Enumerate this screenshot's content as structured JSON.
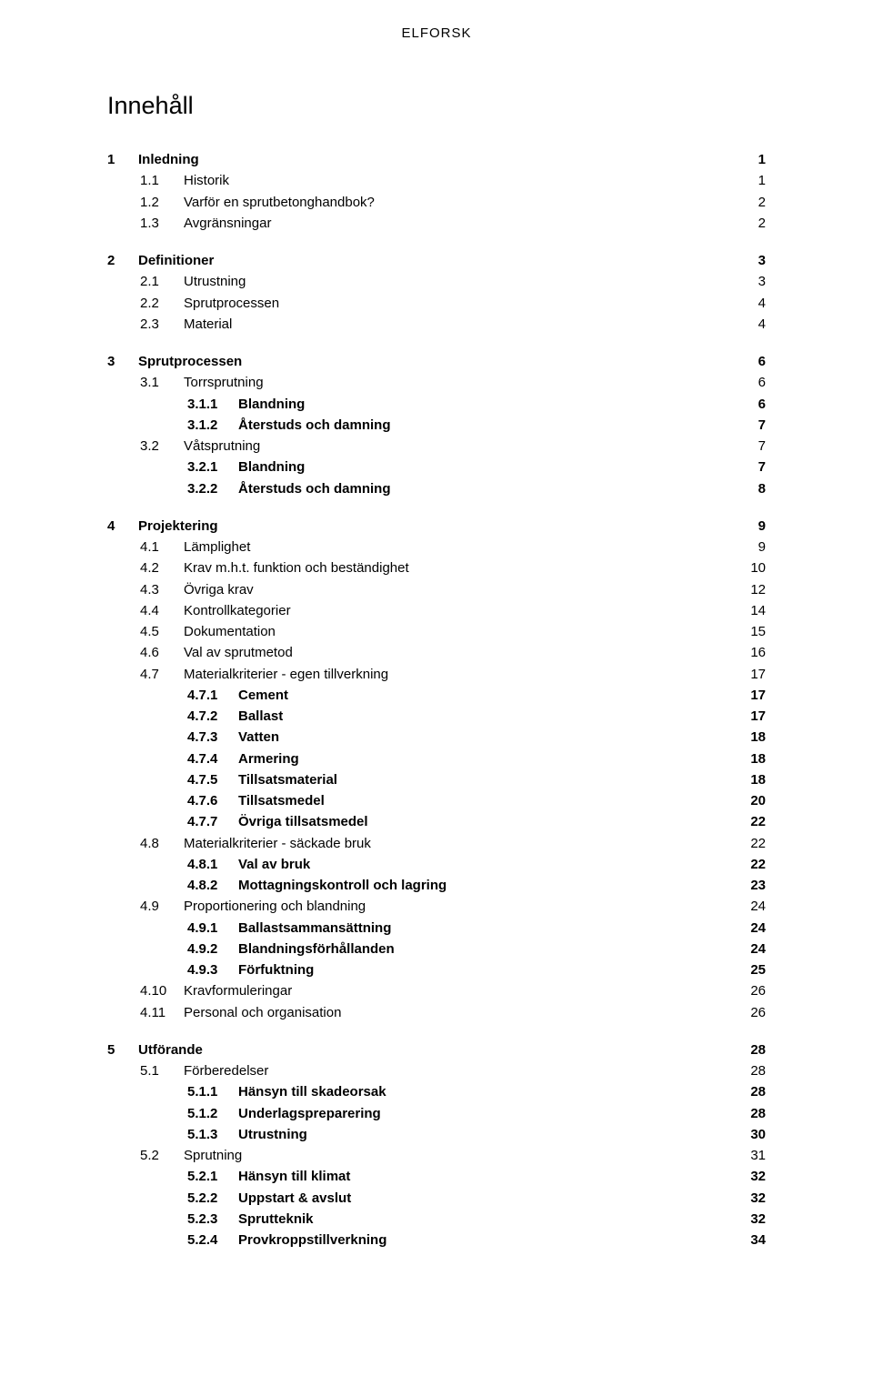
{
  "header": "ELFORSK",
  "title": "Innehåll",
  "colors": {
    "text": "#000000",
    "background": "#ffffff"
  },
  "typography": {
    "body_family": "Verdana, Geneva, sans-serif",
    "body_size_pt": 11,
    "title_size_pt": 20,
    "line_height": 1.55
  },
  "toc": [
    {
      "level": 0,
      "num": "1",
      "label": "Inledning",
      "page": "1",
      "bold": true,
      "leader": false,
      "gap_before": false
    },
    {
      "level": 1,
      "num": "1.1",
      "label": "Historik",
      "page": "1",
      "bold": false,
      "leader": true,
      "gap_before": false
    },
    {
      "level": 1,
      "num": "1.2",
      "label": "Varför en sprutbetonghandbok?",
      "page": "2",
      "bold": false,
      "leader": true,
      "gap_before": false
    },
    {
      "level": 1,
      "num": "1.3",
      "label": "Avgränsningar",
      "page": "2",
      "bold": false,
      "leader": true,
      "gap_before": false
    },
    {
      "level": 0,
      "num": "2",
      "label": "Definitioner",
      "page": "3",
      "bold": true,
      "leader": false,
      "gap_before": true
    },
    {
      "level": 1,
      "num": "2.1",
      "label": "Utrustning",
      "page": "3",
      "bold": false,
      "leader": true,
      "gap_before": false
    },
    {
      "level": 1,
      "num": "2.2",
      "label": "Sprutprocessen",
      "page": "4",
      "bold": false,
      "leader": true,
      "gap_before": false
    },
    {
      "level": 1,
      "num": "2.3",
      "label": "Material",
      "page": "4",
      "bold": false,
      "leader": true,
      "gap_before": false
    },
    {
      "level": 0,
      "num": "3",
      "label": "Sprutprocessen",
      "page": "6",
      "bold": true,
      "leader": false,
      "gap_before": true
    },
    {
      "level": 1,
      "num": "3.1",
      "label": "Torrsprutning",
      "page": "6",
      "bold": false,
      "leader": true,
      "gap_before": false
    },
    {
      "level": 2,
      "num": "3.1.1",
      "label": "Blandning",
      "page": "6",
      "bold": true,
      "leader": true,
      "gap_before": false
    },
    {
      "level": 2,
      "num": "3.1.2",
      "label": "Återstuds och damning",
      "page": "7",
      "bold": true,
      "leader": true,
      "gap_before": false
    },
    {
      "level": 1,
      "num": "3.2",
      "label": "Våtsprutning",
      "page": "7",
      "bold": false,
      "leader": true,
      "gap_before": false
    },
    {
      "level": 2,
      "num": "3.2.1",
      "label": "Blandning",
      "page": "7",
      "bold": true,
      "leader": true,
      "gap_before": false
    },
    {
      "level": 2,
      "num": "3.2.2",
      "label": "Återstuds och damning",
      "page": "8",
      "bold": true,
      "leader": true,
      "gap_before": false
    },
    {
      "level": 0,
      "num": "4",
      "label": "Projektering",
      "page": "9",
      "bold": true,
      "leader": false,
      "gap_before": true
    },
    {
      "level": 1,
      "num": "4.1",
      "label": "Lämplighet",
      "page": "9",
      "bold": false,
      "leader": true,
      "gap_before": false
    },
    {
      "level": 1,
      "num": "4.2",
      "label": "Krav m.h.t. funktion och beständighet",
      "page": "10",
      "bold": false,
      "leader": true,
      "gap_before": false
    },
    {
      "level": 1,
      "num": "4.3",
      "label": "Övriga krav",
      "page": "12",
      "bold": false,
      "leader": true,
      "gap_before": false
    },
    {
      "level": 1,
      "num": "4.4",
      "label": "Kontrollkategorier",
      "page": "14",
      "bold": false,
      "leader": true,
      "gap_before": false
    },
    {
      "level": 1,
      "num": "4.5",
      "label": "Dokumentation",
      "page": "15",
      "bold": false,
      "leader": true,
      "gap_before": false
    },
    {
      "level": 1,
      "num": "4.6",
      "label": "Val av sprutmetod",
      "page": "16",
      "bold": false,
      "leader": true,
      "gap_before": false
    },
    {
      "level": 1,
      "num": "4.7",
      "label": "Materialkriterier - egen tillverkning",
      "page": "17",
      "bold": false,
      "leader": true,
      "gap_before": false
    },
    {
      "level": 2,
      "num": "4.7.1",
      "label": "Cement",
      "page": "17",
      "bold": true,
      "leader": true,
      "gap_before": false
    },
    {
      "level": 2,
      "num": "4.7.2",
      "label": "Ballast",
      "page": "17",
      "bold": true,
      "leader": true,
      "gap_before": false
    },
    {
      "level": 2,
      "num": "4.7.3",
      "label": "Vatten",
      "page": "18",
      "bold": true,
      "leader": true,
      "gap_before": false
    },
    {
      "level": 2,
      "num": "4.7.4",
      "label": "Armering",
      "page": "18",
      "bold": true,
      "leader": true,
      "gap_before": false
    },
    {
      "level": 2,
      "num": "4.7.5",
      "label": "Tillsatsmaterial",
      "page": "18",
      "bold": true,
      "leader": true,
      "gap_before": false
    },
    {
      "level": 2,
      "num": "4.7.6",
      "label": "Tillsatsmedel",
      "page": "20",
      "bold": true,
      "leader": true,
      "gap_before": false
    },
    {
      "level": 2,
      "num": "4.7.7",
      "label": "Övriga tillsatsmedel",
      "page": "22",
      "bold": true,
      "leader": true,
      "gap_before": false
    },
    {
      "level": 1,
      "num": "4.8",
      "label": "Materialkriterier - säckade bruk",
      "page": "22",
      "bold": false,
      "leader": true,
      "gap_before": false
    },
    {
      "level": 2,
      "num": "4.8.1",
      "label": "Val av bruk",
      "page": "22",
      "bold": true,
      "leader": true,
      "gap_before": false
    },
    {
      "level": 2,
      "num": "4.8.2",
      "label": "Mottagningskontroll och lagring",
      "page": "23",
      "bold": true,
      "leader": true,
      "gap_before": false
    },
    {
      "level": 1,
      "num": "4.9",
      "label": "Proportionering och blandning",
      "page": "24",
      "bold": false,
      "leader": true,
      "gap_before": false
    },
    {
      "level": 2,
      "num": "4.9.1",
      "label": "Ballastsammansättning",
      "page": "24",
      "bold": true,
      "leader": true,
      "gap_before": false
    },
    {
      "level": 2,
      "num": "4.9.2",
      "label": "Blandningsförhållanden",
      "page": "24",
      "bold": true,
      "leader": true,
      "gap_before": false
    },
    {
      "level": 2,
      "num": "4.9.3",
      "label": "Förfuktning",
      "page": "25",
      "bold": true,
      "leader": true,
      "gap_before": false
    },
    {
      "level": 1,
      "num": "4.10",
      "label": "Kravformuleringar",
      "page": "26",
      "bold": false,
      "leader": true,
      "gap_before": false
    },
    {
      "level": 1,
      "num": "4.11",
      "label": "Personal och organisation",
      "page": "26",
      "bold": false,
      "leader": true,
      "gap_before": false
    },
    {
      "level": 0,
      "num": "5",
      "label": "Utförande",
      "page": "28",
      "bold": true,
      "leader": false,
      "gap_before": true
    },
    {
      "level": 1,
      "num": "5.1",
      "label": "Förberedelser",
      "page": "28",
      "bold": false,
      "leader": true,
      "gap_before": false
    },
    {
      "level": 2,
      "num": "5.1.1",
      "label": "Hänsyn till skadeorsak",
      "page": "28",
      "bold": true,
      "leader": true,
      "gap_before": false
    },
    {
      "level": 2,
      "num": "5.1.2",
      "label": "Underlagspreparering",
      "page": "28",
      "bold": true,
      "leader": true,
      "gap_before": false
    },
    {
      "level": 2,
      "num": "5.1.3",
      "label": "Utrustning",
      "page": "30",
      "bold": true,
      "leader": true,
      "gap_before": false
    },
    {
      "level": 1,
      "num": "5.2",
      "label": "Sprutning",
      "page": "31",
      "bold": false,
      "leader": true,
      "gap_before": false
    },
    {
      "level": 2,
      "num": "5.2.1",
      "label": "Hänsyn till klimat",
      "page": "32",
      "bold": true,
      "leader": true,
      "gap_before": false
    },
    {
      "level": 2,
      "num": "5.2.2",
      "label": "Uppstart & avslut",
      "page": "32",
      "bold": true,
      "leader": true,
      "gap_before": false
    },
    {
      "level": 2,
      "num": "5.2.3",
      "label": "Sprutteknik",
      "page": "32",
      "bold": true,
      "leader": true,
      "gap_before": false
    },
    {
      "level": 2,
      "num": "5.2.4",
      "label": "Provkroppstillverkning",
      "page": "34",
      "bold": true,
      "leader": true,
      "gap_before": false
    }
  ]
}
